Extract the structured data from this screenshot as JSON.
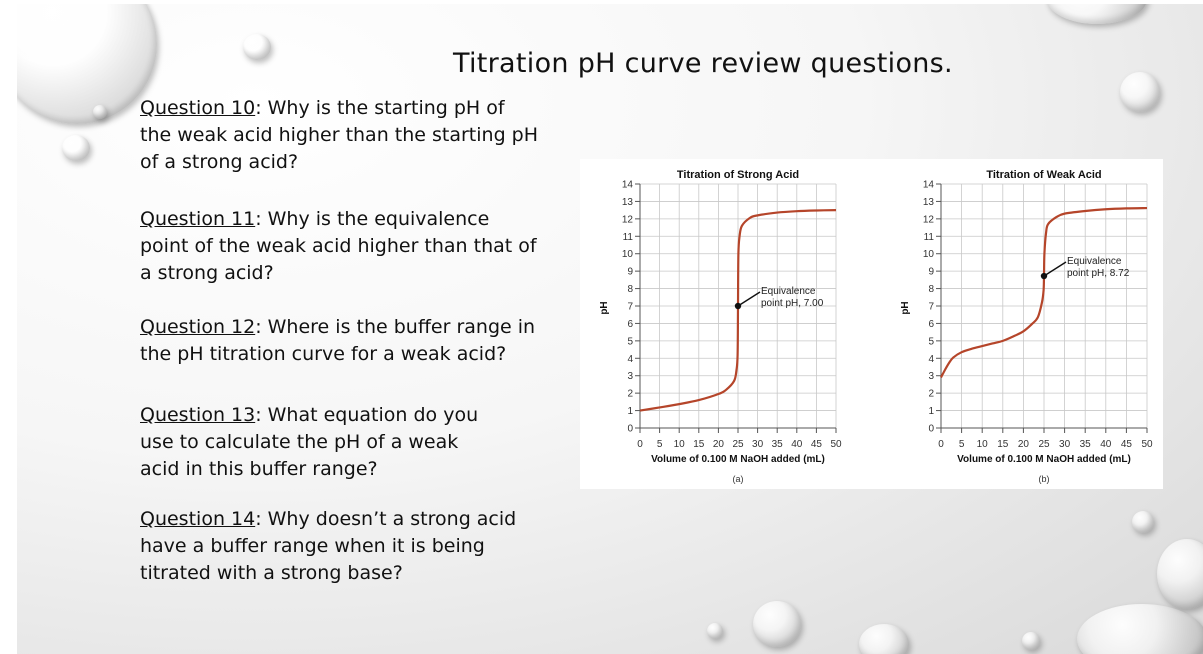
{
  "slide": {
    "title": "Titration pH curve review questions.",
    "questions": [
      {
        "number": "Question 10",
        "text": ": Why is the starting pH of the weak acid higher than the starting pH of a strong acid?"
      },
      {
        "number": "Question 11",
        "text": ": Why is the equivalence point of the weak acid higher than that of a strong acid?"
      },
      {
        "number": "Question 12",
        "text": ": Where is the buffer range in the pH titration curve for a weak acid?"
      },
      {
        "number": "Question 13",
        "text": ": What equation do you use to calculate the pH of a weak acid in this buffer range?"
      },
      {
        "number": "Question 14",
        "text": ": Why doesn’t a strong acid have a buffer range when it is being titrated with a strong base?"
      }
    ]
  },
  "colors": {
    "curve": "#b5452a",
    "grid": "#c8c8c8",
    "axis": "#555555",
    "text": "#111111"
  },
  "chart_data": [
    {
      "type": "line",
      "title": "Titration of Strong Acid",
      "xlabel": "Volume of 0.100 M NaOH added (mL)",
      "ylabel": "pH",
      "caption": "(a)",
      "xlim": [
        0,
        50
      ],
      "ylim": [
        0,
        14
      ],
      "xticks": [
        0,
        5,
        10,
        15,
        20,
        25,
        30,
        35,
        40,
        45,
        50
      ],
      "yticks": [
        0,
        1,
        2,
        3,
        4,
        5,
        6,
        7,
        8,
        9,
        10,
        11,
        12,
        13,
        14
      ],
      "grid": true,
      "series": [
        {
          "x": [
            0,
            5,
            10,
            15,
            20,
            22,
            24,
            24.6,
            24.9,
            25,
            25.1,
            25.4,
            26,
            28,
            30,
            35,
            40,
            45,
            50
          ],
          "y": [
            1.0,
            1.18,
            1.37,
            1.6,
            1.95,
            2.2,
            2.7,
            3.3,
            4.2,
            7.0,
            10.0,
            11.0,
            11.6,
            12.05,
            12.2,
            12.36,
            12.44,
            12.48,
            12.5
          ]
        }
      ],
      "annotation": {
        "x": 25,
        "y": 7.0,
        "lines": [
          "Equivalence",
          "point pH, 7.00"
        ]
      }
    },
    {
      "type": "line",
      "title": "Titration of Weak Acid",
      "xlabel": "Volume of 0.100 M NaOH added (mL)",
      "ylabel": "pH",
      "caption": "(b)",
      "xlim": [
        0,
        50
      ],
      "ylim": [
        0,
        14
      ],
      "xticks": [
        0,
        5,
        10,
        15,
        20,
        25,
        30,
        35,
        40,
        45,
        50
      ],
      "yticks": [
        0,
        1,
        2,
        3,
        4,
        5,
        6,
        7,
        8,
        9,
        10,
        11,
        12,
        13,
        14
      ],
      "grid": true,
      "series": [
        {
          "x": [
            0,
            1,
            2,
            3,
            5,
            7.5,
            10,
            12.5,
            15,
            17.5,
            20,
            22,
            23.5,
            24.5,
            24.9,
            25,
            25.1,
            25.5,
            26,
            28,
            30,
            35,
            40,
            45,
            50
          ],
          "y": [
            2.9,
            3.35,
            3.75,
            4.05,
            4.35,
            4.55,
            4.7,
            4.85,
            5.0,
            5.25,
            5.55,
            5.95,
            6.35,
            7.2,
            7.9,
            8.72,
            10.0,
            11.2,
            11.7,
            12.1,
            12.3,
            12.45,
            12.55,
            12.6,
            12.62
          ]
        }
      ],
      "annotation": {
        "x": 25,
        "y": 8.72,
        "lines": [
          "Equivalence",
          "point pH, 8.72"
        ]
      }
    }
  ]
}
